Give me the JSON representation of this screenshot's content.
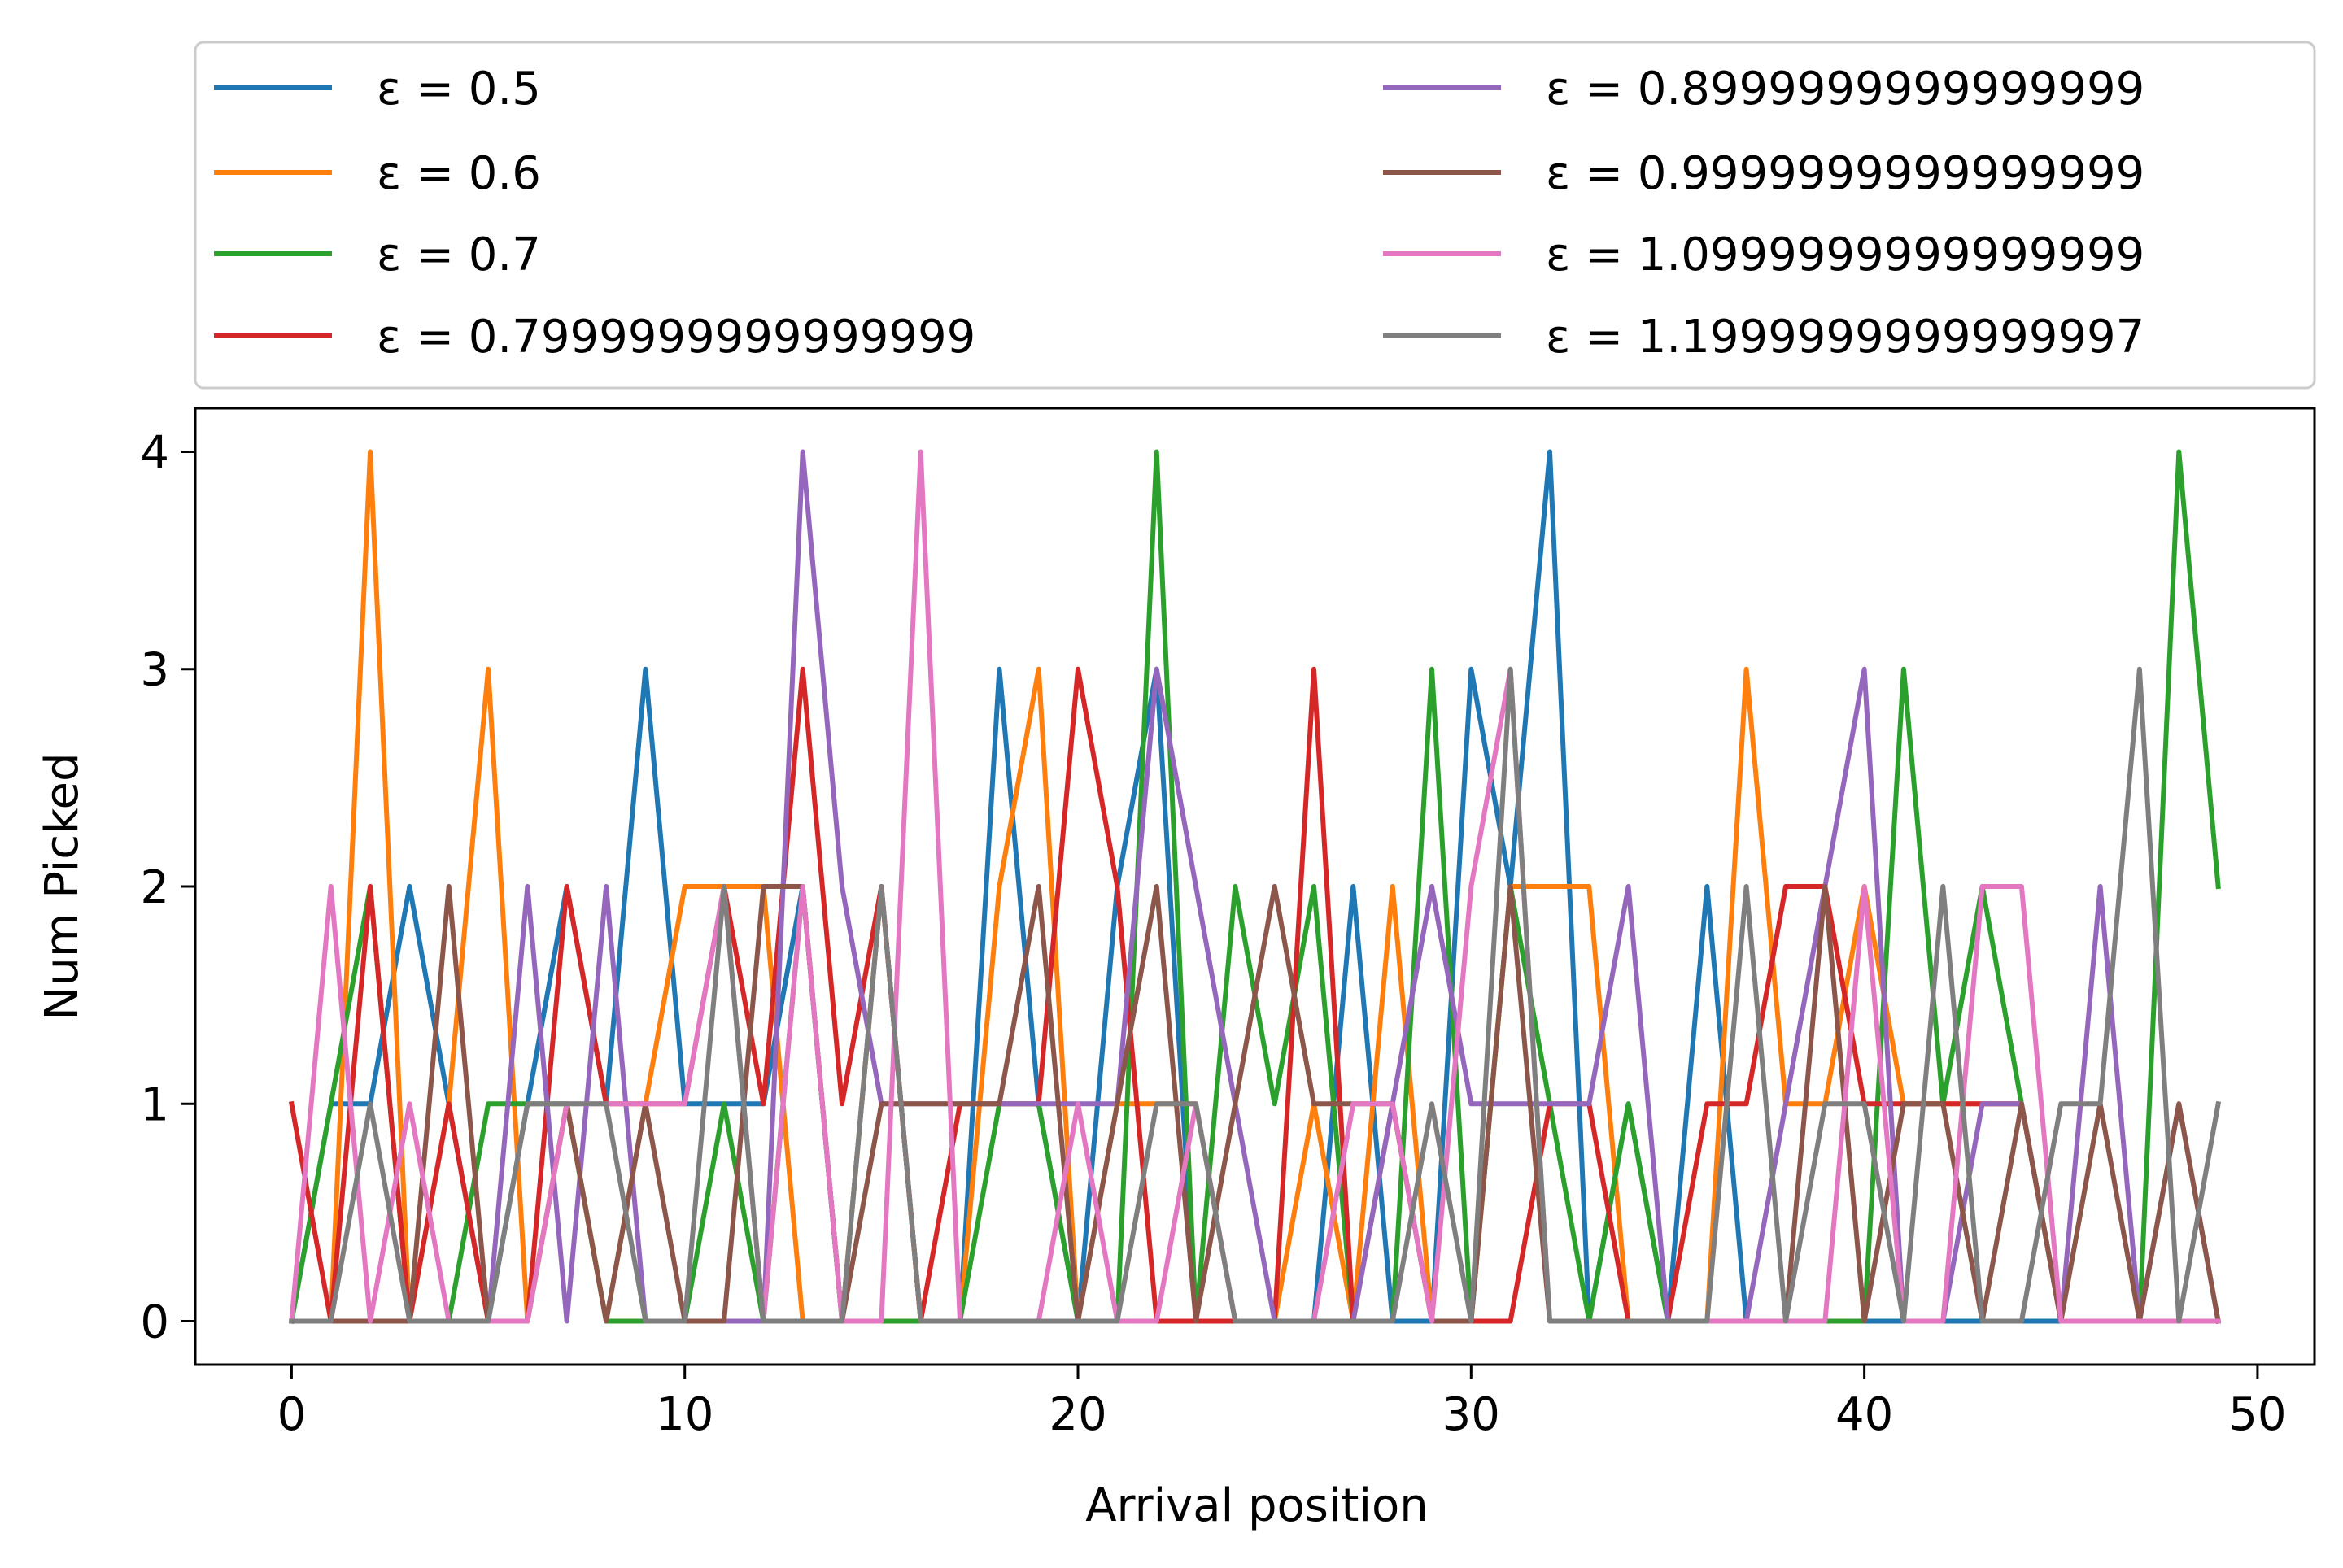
{
  "chart_data": {
    "type": "line",
    "title": "",
    "xlabel": "Arrival position",
    "ylabel": "Num Picked",
    "xlim": [
      -2.45,
      51.45
    ],
    "ylim": [
      -0.2,
      4.2
    ],
    "xticks": [
      0,
      10,
      20,
      30,
      40,
      50
    ],
    "yticks": [
      0,
      1,
      2,
      3,
      4
    ],
    "legend_position": "above plot, two columns",
    "grid": false,
    "x": [
      0,
      1,
      2,
      3,
      4,
      5,
      6,
      7,
      8,
      9,
      10,
      11,
      12,
      13,
      14,
      15,
      16,
      17,
      18,
      19,
      20,
      21,
      22,
      23,
      24,
      25,
      26,
      27,
      28,
      29,
      30,
      31,
      32,
      33,
      34,
      35,
      36,
      37,
      38,
      39,
      40,
      41,
      42,
      43,
      44,
      45,
      46,
      47,
      48,
      49
    ],
    "series": [
      {
        "name": "ε = 0.5",
        "color": "#1f77b4",
        "values": [
          0,
          1,
          1,
          2,
          1,
          0,
          1,
          2,
          1,
          3,
          1,
          1,
          1,
          2,
          0,
          2,
          0,
          0,
          3,
          1,
          0,
          2,
          3,
          0,
          0,
          0,
          0,
          2,
          0,
          0,
          3,
          2,
          4,
          0,
          1,
          0,
          2,
          0,
          0,
          0,
          0,
          0,
          0,
          0,
          0,
          0,
          0,
          0,
          0,
          0
        ]
      },
      {
        "name": "ε = 0.6",
        "color": "#ff7f0e",
        "values": [
          0,
          0,
          4,
          0,
          1,
          3,
          0,
          1,
          0,
          1,
          2,
          2,
          2,
          0,
          0,
          2,
          0,
          0,
          2,
          3,
          0,
          1,
          1,
          1,
          0,
          0,
          1,
          0,
          2,
          0,
          0,
          2,
          2,
          2,
          0,
          0,
          0,
          3,
          1,
          1,
          2,
          1,
          1,
          1,
          1,
          0,
          0,
          0,
          0,
          0
        ]
      },
      {
        "name": "ε = 0.7",
        "color": "#2ca02c",
        "values": [
          0,
          1,
          2,
          0,
          0,
          1,
          1,
          1,
          0,
          0,
          0,
          1,
          0,
          2,
          0,
          0,
          0,
          0,
          1,
          1,
          0,
          0,
          4,
          0,
          2,
          1,
          2,
          0,
          0,
          3,
          0,
          2,
          1,
          0,
          1,
          0,
          0,
          0,
          0,
          0,
          0,
          3,
          1,
          2,
          1,
          0,
          0,
          0,
          4,
          2
        ]
      },
      {
        "name": "ε = 0.7999999999999999",
        "color": "#d62728",
        "values": [
          1,
          0,
          2,
          0,
          1,
          0,
          0,
          2,
          1,
          1,
          1,
          2,
          1,
          3,
          1,
          2,
          0,
          1,
          1,
          1,
          3,
          2,
          0,
          0,
          0,
          0,
          3,
          0,
          1,
          0,
          0,
          0,
          1,
          1,
          0,
          0,
          1,
          1,
          2,
          2,
          1,
          1,
          1,
          1,
          1,
          0,
          0,
          0,
          0,
          0
        ]
      },
      {
        "name": "ε = 0.8999999999999999",
        "color": "#9467bd",
        "values": [
          0,
          0,
          0,
          0,
          0,
          0,
          2,
          0,
          2,
          0,
          0,
          0,
          0,
          4,
          2,
          1,
          1,
          1,
          1,
          1,
          1,
          1,
          3,
          2,
          1,
          0,
          0,
          0,
          1,
          2,
          1,
          1,
          1,
          1,
          2,
          0,
          0,
          0,
          1,
          2,
          3,
          0,
          0,
          1,
          1,
          0,
          2,
          0,
          1,
          0
        ]
      },
      {
        "name": "ε = 0.9999999999999999",
        "color": "#8c564b",
        "values": [
          0,
          0,
          0,
          0,
          2,
          0,
          0,
          1,
          0,
          1,
          0,
          0,
          2,
          2,
          0,
          1,
          1,
          1,
          1,
          2,
          0,
          1,
          2,
          0,
          1,
          2,
          1,
          1,
          1,
          0,
          0,
          2,
          0,
          0,
          0,
          0,
          0,
          0,
          0,
          2,
          0,
          1,
          1,
          0,
          1,
          0,
          1,
          0,
          1,
          0
        ]
      },
      {
        "name": "ε = 1.0999999999999999",
        "color": "#e377c2",
        "values": [
          0,
          2,
          0,
          1,
          0,
          0,
          0,
          1,
          1,
          1,
          1,
          2,
          0,
          2,
          0,
          0,
          4,
          0,
          0,
          0,
          1,
          0,
          0,
          1,
          0,
          0,
          0,
          1,
          1,
          0,
          2,
          3,
          0,
          0,
          0,
          0,
          0,
          0,
          0,
          0,
          2,
          0,
          0,
          2,
          2,
          0,
          0,
          0,
          0,
          0
        ]
      },
      {
        "name": "ε = 1.1999999999999997",
        "color": "#7f7f7f",
        "values": [
          0,
          0,
          1,
          0,
          0,
          0,
          1,
          1,
          1,
          0,
          0,
          2,
          0,
          0,
          0,
          2,
          0,
          0,
          0,
          0,
          0,
          0,
          1,
          1,
          0,
          0,
          0,
          0,
          0,
          1,
          0,
          3,
          0,
          0,
          0,
          0,
          0,
          2,
          0,
          1,
          1,
          0,
          2,
          0,
          0,
          1,
          1,
          3,
          0,
          1
        ]
      }
    ]
  }
}
